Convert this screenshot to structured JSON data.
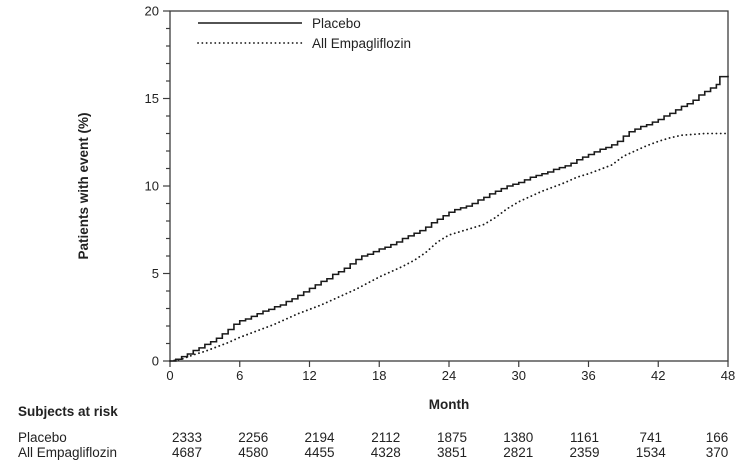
{
  "colors": {
    "curve": "#1a1a1a",
    "axis": "#3c3c3c",
    "text": "#222222",
    "background": "#ffffff"
  },
  "chart_data": {
    "type": "line",
    "subtype": "kaplan-meier-cumulative-incidence",
    "title": "",
    "xlabel": "Month",
    "ylabel": "Patients with event (%)",
    "xlim": [
      0,
      48
    ],
    "ylim": [
      0,
      20
    ],
    "xticks": [
      0,
      6,
      12,
      18,
      24,
      30,
      36,
      42,
      48
    ],
    "yticks": [
      0,
      5,
      10,
      15,
      20
    ],
    "y_minor_step": 1,
    "grid": false,
    "legend_position": "top-left-inside",
    "series": [
      {
        "name": "Placebo",
        "style": "solid",
        "x": [
          0,
          0.5,
          1,
          1.5,
          2,
          2.5,
          3,
          3.5,
          4,
          4.5,
          5,
          5.5,
          6,
          6.5,
          7,
          7.5,
          8,
          8.5,
          9,
          9.5,
          10,
          10.5,
          11,
          11.5,
          12,
          12.5,
          13,
          13.5,
          14,
          14.5,
          15,
          15.5,
          16,
          16.5,
          17,
          17.5,
          18,
          18.5,
          19,
          19.5,
          20,
          20.5,
          21,
          21.5,
          22,
          22.5,
          23,
          23.5,
          24,
          24.5,
          25,
          25.5,
          26,
          26.5,
          27,
          27.5,
          28,
          28.5,
          29,
          29.5,
          30,
          30.5,
          31,
          31.5,
          32,
          32.5,
          33,
          33.5,
          34,
          34.5,
          35,
          35.5,
          36,
          36.5,
          37,
          37.5,
          38,
          38.5,
          39,
          39.5,
          40,
          40.5,
          41,
          41.5,
          42,
          42.5,
          43,
          43.5,
          44,
          44.5,
          45,
          45.5,
          46,
          46.5,
          47,
          47.3,
          48
        ],
        "y": [
          0,
          0.1,
          0.25,
          0.4,
          0.6,
          0.75,
          0.95,
          1.1,
          1.3,
          1.55,
          1.8,
          2.1,
          2.3,
          2.4,
          2.55,
          2.7,
          2.85,
          2.95,
          3.1,
          3.2,
          3.4,
          3.55,
          3.75,
          3.95,
          4.15,
          4.35,
          4.55,
          4.7,
          4.95,
          5.1,
          5.3,
          5.55,
          5.8,
          6.0,
          6.1,
          6.25,
          6.4,
          6.5,
          6.65,
          6.8,
          7.0,
          7.15,
          7.3,
          7.45,
          7.65,
          7.9,
          8.1,
          8.3,
          8.5,
          8.65,
          8.75,
          8.85,
          9.0,
          9.2,
          9.35,
          9.55,
          9.7,
          9.85,
          10.0,
          10.1,
          10.2,
          10.35,
          10.5,
          10.6,
          10.7,
          10.8,
          10.95,
          11.05,
          11.15,
          11.3,
          11.5,
          11.65,
          11.8,
          11.95,
          12.1,
          12.2,
          12.35,
          12.55,
          12.85,
          13.1,
          13.25,
          13.4,
          13.5,
          13.65,
          13.8,
          14.0,
          14.15,
          14.35,
          14.55,
          14.7,
          14.9,
          15.2,
          15.4,
          15.6,
          15.8,
          16.25,
          16.3
        ]
      },
      {
        "name": "All Empagliflozin",
        "style": "dotted",
        "x": [
          0,
          1,
          2,
          3,
          4,
          5,
          6,
          7,
          8,
          9,
          10,
          11,
          12,
          13,
          14,
          15,
          16,
          17,
          18,
          19,
          20,
          21,
          22,
          23,
          24,
          25,
          26,
          27,
          28,
          29,
          30,
          31,
          32,
          33,
          34,
          35,
          36,
          37,
          38,
          39,
          40,
          41,
          42,
          43,
          44,
          45,
          46,
          47,
          48
        ],
        "y": [
          0,
          0.1,
          0.35,
          0.55,
          0.8,
          1.05,
          1.35,
          1.6,
          1.85,
          2.1,
          2.4,
          2.7,
          2.95,
          3.2,
          3.5,
          3.8,
          4.1,
          4.45,
          4.8,
          5.1,
          5.4,
          5.75,
          6.2,
          6.8,
          7.2,
          7.4,
          7.6,
          7.8,
          8.2,
          8.7,
          9.1,
          9.4,
          9.7,
          9.95,
          10.2,
          10.5,
          10.7,
          10.95,
          11.2,
          11.7,
          12.0,
          12.3,
          12.55,
          12.75,
          12.9,
          12.95,
          13.0,
          13.0,
          13.0
        ]
      }
    ]
  },
  "risk_table": {
    "title": "Subjects at risk",
    "months": [
      0,
      6,
      12,
      18,
      24,
      30,
      36,
      42,
      48
    ],
    "rows": [
      {
        "label": "Placebo",
        "values": [
          "2333",
          "2256",
          "2194",
          "2112",
          "1875",
          "1380",
          "1161",
          "741",
          "166"
        ]
      },
      {
        "label": "All Empagliflozin",
        "values": [
          "4687",
          "4580",
          "4455",
          "4328",
          "3851",
          "2821",
          "2359",
          "1534",
          "370"
        ]
      }
    ]
  }
}
